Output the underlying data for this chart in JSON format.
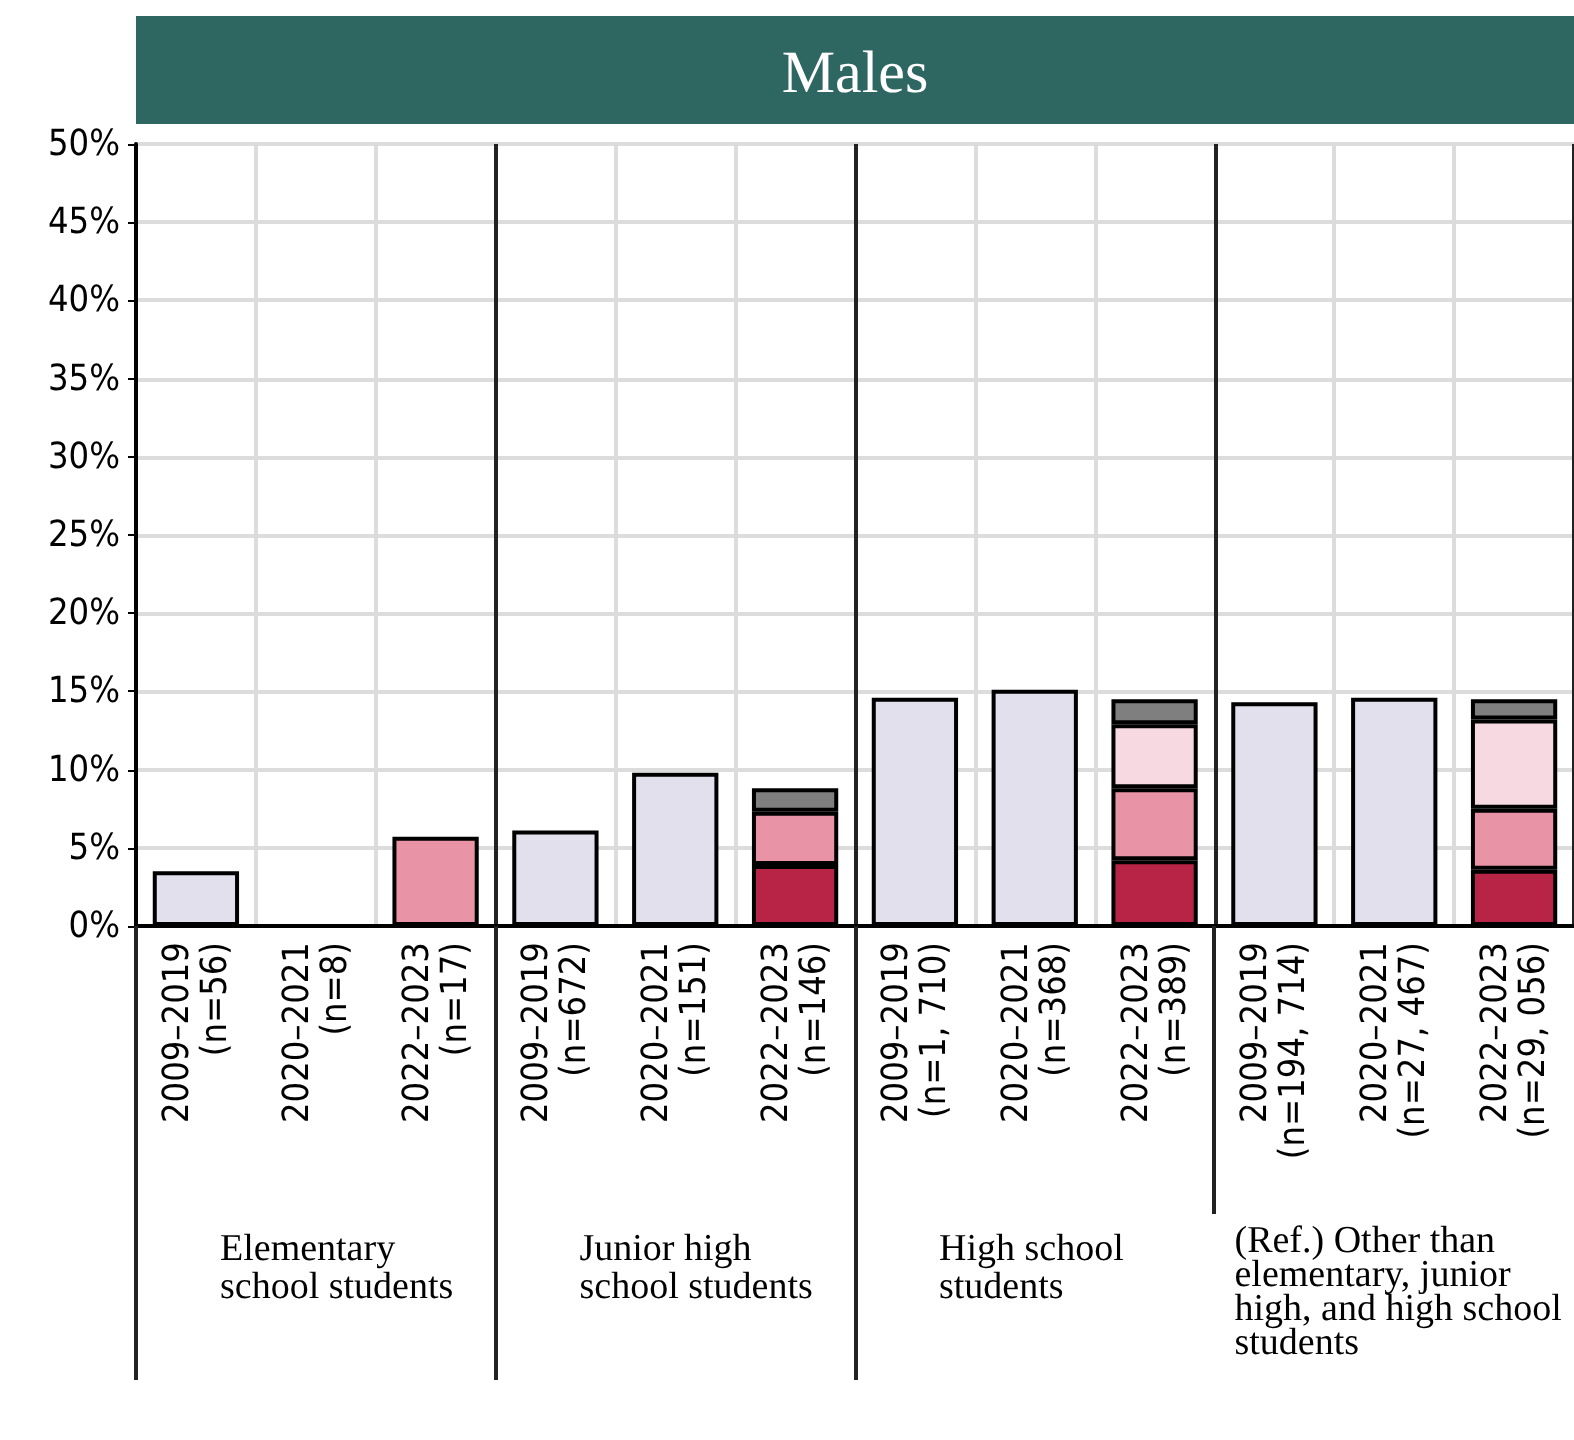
{
  "chart_data": {
    "type": "bar",
    "title": "Males",
    "stacked": true,
    "grid": true,
    "categories": [
      "2009–2019\n(n=56)",
      "2020–2021\n(n=8)",
      "2022–2023\n(n=17)",
      "2009–2019\n(n=672)",
      "2020–2021\n(n=151)",
      "2022–2023\n(n=146)",
      "2009–2019\n(n=1, 710)",
      "2020–2021\n(n=368)",
      "2022–2023\n(n=389)",
      "2009–2019\n(n=194, 714)",
      "2020–2021\n(n=27, 467)",
      "2022–2023\n(n=29, 056)"
    ],
    "series": [
      {
        "color": "#e2e0ec",
        "values": [
          3.5,
          null,
          null,
          6.1,
          9.8,
          null,
          14.6,
          15.1,
          null,
          14.3,
          14.6,
          null
        ]
      },
      {
        "color": "#b72446",
        "values": [
          null,
          null,
          null,
          null,
          null,
          3.9,
          null,
          null,
          4.2,
          null,
          null,
          3.6
        ]
      },
      {
        "color": "#e893a6",
        "values": [
          null,
          null,
          5.7,
          null,
          null,
          3.4,
          null,
          null,
          4.6,
          null,
          null,
          3.9
        ]
      },
      {
        "color": "#f7d9e1",
        "values": [
          null,
          null,
          null,
          null,
          null,
          null,
          null,
          null,
          4.1,
          null,
          null,
          5.7
        ]
      },
      {
        "color": "#7f7f7f",
        "values": [
          null,
          null,
          null,
          null,
          null,
          1.5,
          null,
          null,
          1.6,
          null,
          null,
          1.3
        ]
      }
    ],
    "ylim": [
      0,
      50
    ],
    "yticks": [
      {
        "value": 0,
        "label": "0%"
      },
      {
        "value": 5,
        "label": "5%"
      },
      {
        "value": 10,
        "label": "10%"
      },
      {
        "value": 15,
        "label": "15%"
      },
      {
        "value": 20,
        "label": "20%"
      },
      {
        "value": 25,
        "label": "25%"
      },
      {
        "value": 30,
        "label": "30%"
      },
      {
        "value": 35,
        "label": "35%"
      },
      {
        "value": 40,
        "label": "40%"
      },
      {
        "value": 45,
        "label": "45%"
      },
      {
        "value": 50,
        "label": "50%"
      }
    ],
    "annotations": [
      "Elementary school students",
      "Junior high school students",
      "High school students",
      "(Ref.) Other than elementary, junior high, and high school students"
    ]
  }
}
